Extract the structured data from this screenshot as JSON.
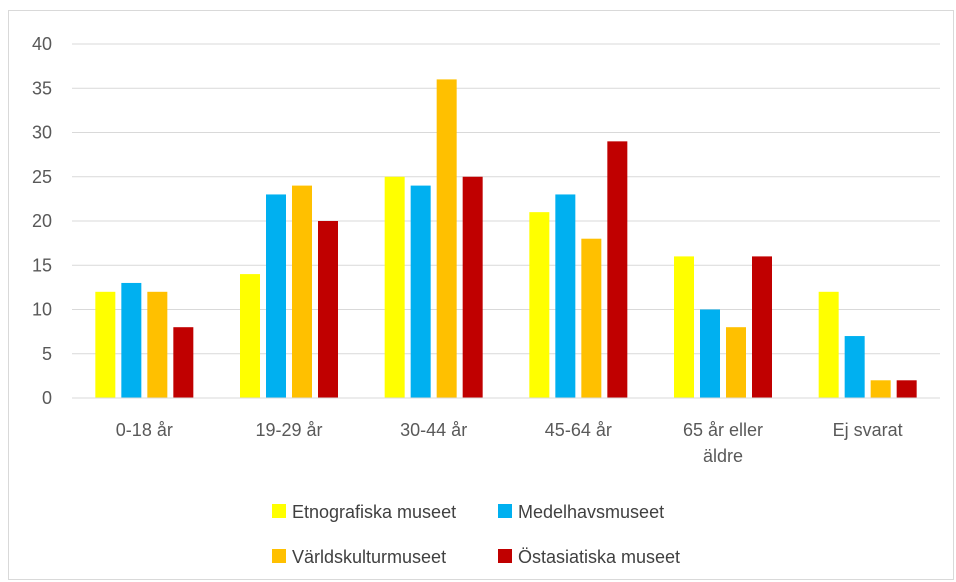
{
  "chart_data": {
    "type": "bar",
    "categories": [
      [
        "0-18 år"
      ],
      [
        "19-29 år"
      ],
      [
        "30-44 år"
      ],
      [
        "45-64 år"
      ],
      [
        "65 år eller",
        "äldre"
      ],
      [
        "Ej svarat"
      ]
    ],
    "series": [
      {
        "name": "Etnografiska museet",
        "color": "#ffff00",
        "values": [
          12,
          14,
          25,
          21,
          16,
          12
        ]
      },
      {
        "name": "Medelhavsmuseet",
        "color": "#00b0f0",
        "values": [
          13,
          23,
          24,
          23,
          10,
          7
        ]
      },
      {
        "name": "Världskulturmuseet",
        "color": "#ffc000",
        "values": [
          12,
          24,
          36,
          18,
          8,
          2
        ]
      },
      {
        "name": "Östasiatiska museet",
        "color": "#c00000",
        "values": [
          8,
          20,
          25,
          29,
          16,
          2
        ]
      }
    ],
    "yticks": [
      "0",
      "5",
      "10",
      "15",
      "20",
      "25",
      "30",
      "35",
      "40"
    ],
    "ylim": [
      0,
      40
    ],
    "grid": true,
    "legend_position": "bottom",
    "gridline_color": "#d9d9d9"
  }
}
